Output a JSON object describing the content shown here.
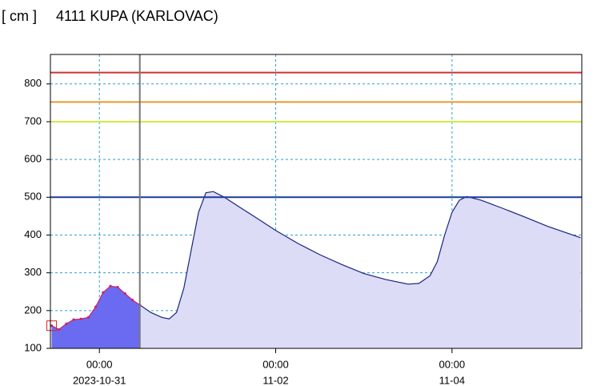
{
  "chart_data": {
    "type": "area",
    "unit": "[ cm ]",
    "title": "4111 KUPA (KARLOVAC)",
    "ylim": [
      100,
      878
    ],
    "yticks": [
      100,
      200,
      300,
      400,
      500,
      600,
      700,
      800
    ],
    "xlim": [
      "2023-10-30T10:40",
      "2023-11-05T11:20"
    ],
    "xticks": [
      {
        "value": "2023-10-31T00:00",
        "label": [
          "00:00",
          "2023-10-31"
        ]
      },
      {
        "value": "2023-11-02T00:00",
        "label": [
          "00:00",
          "11-02"
        ]
      },
      {
        "value": "2023-11-04T00:00",
        "label": [
          "00:00",
          "11-04"
        ]
      }
    ],
    "grid": true,
    "thresholds": [
      {
        "value": 830,
        "color": "#cc3333"
      },
      {
        "value": 752,
        "color": "#e69a2e"
      },
      {
        "value": 700,
        "color": "#ccee44"
      },
      {
        "value": 500,
        "color": "#1a3a9e"
      }
    ],
    "now_marker": "2023-10-31T11:00",
    "series": [
      {
        "color": "#cc2266",
        "fill": "#6b6bf2",
        "x": [
          "2023-10-30T11:00",
          "2023-10-30T13:00",
          "2023-10-30T15:00",
          "2023-10-30T17:00",
          "2023-10-30T19:00",
          "2023-10-30T21:00",
          "2023-10-30T23:00",
          "2023-10-31T01:00",
          "2023-10-31T03:00",
          "2023-10-31T05:00",
          "2023-10-31T07:00",
          "2023-10-31T09:00",
          "2023-10-31T11:00"
        ],
        "values": [
          160,
          150,
          165,
          176,
          178,
          182,
          210,
          248,
          265,
          262,
          245,
          228,
          215
        ]
      },
      {
        "color": "#1a237e",
        "fill": "#dcdcf7",
        "x": [
          "2023-10-31T11:00",
          "2023-10-31T14:00",
          "2023-10-31T17:00",
          "2023-10-31T19:00",
          "2023-10-31T21:00",
          "2023-10-31T23:00",
          "2023-11-01T01:00",
          "2023-11-01T03:00",
          "2023-11-01T05:00",
          "2023-11-01T07:00",
          "2023-11-01T10:00",
          "2023-11-01T14:00",
          "2023-11-01T18:00",
          "2023-11-02T00:00",
          "2023-11-02T06:00",
          "2023-11-02T12:00",
          "2023-11-02T18:00",
          "2023-11-03T00:00",
          "2023-11-03T06:00",
          "2023-11-03T12:00",
          "2023-11-03T15:00",
          "2023-11-03T18:00",
          "2023-11-03T20:00",
          "2023-11-03T22:00",
          "2023-11-04T00:00",
          "2023-11-04T02:00",
          "2023-11-04T04:00",
          "2023-11-04T08:00",
          "2023-11-04T14:00",
          "2023-11-04T20:00",
          "2023-11-05T02:00",
          "2023-11-05T08:00",
          "2023-11-05T11:00"
        ],
        "values": [
          215,
          195,
          182,
          178,
          195,
          260,
          360,
          460,
          512,
          515,
          500,
          475,
          450,
          412,
          378,
          348,
          322,
          298,
          282,
          270,
          272,
          292,
          330,
          400,
          460,
          492,
          502,
          492,
          470,
          447,
          423,
          403,
          393
        ]
      }
    ]
  }
}
